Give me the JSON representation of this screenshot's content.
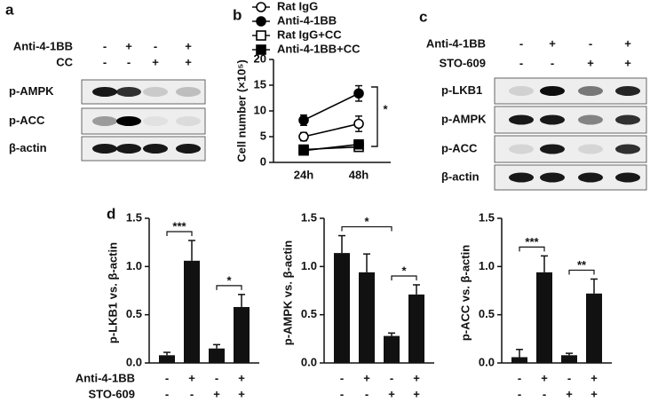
{
  "blot_a": {
    "label": "a",
    "conditions": [
      {
        "name": "Anti-4-1BB",
        "signs": [
          "-",
          "+",
          "-",
          "+"
        ]
      },
      {
        "name": "CC",
        "signs": [
          "-",
          "-",
          "+",
          "+"
        ]
      }
    ],
    "rows": [
      "p-AMPK",
      "p-ACC",
      "β-actin"
    ]
  },
  "blot_c": {
    "label": "c",
    "conditions": [
      {
        "name": "Anti-4-1BB",
        "signs": [
          "-",
          "+",
          "-",
          "+"
        ]
      },
      {
        "name": "STO-609",
        "signs": [
          "-",
          "-",
          "+",
          "+"
        ]
      }
    ],
    "rows": [
      "p-LKB1",
      "p-AMPK",
      "p-ACC",
      "β-actin"
    ]
  },
  "chart_data": [
    {
      "type": "line",
      "label": "b",
      "ylabel": "Cell number (×10⁵)",
      "categories": [
        "24h",
        "48h"
      ],
      "ylim": [
        0,
        20
      ],
      "yticks": [
        0,
        5,
        10,
        15,
        20
      ],
      "series": [
        {
          "name": "Rat IgG",
          "color": "#000000",
          "marker": "circle",
          "filled": false,
          "values": [
            5.0,
            7.5
          ],
          "errors": [
            0.8,
            1.5
          ]
        },
        {
          "name": "Anti-4-1BB",
          "color": "#000000",
          "marker": "circle",
          "filled": true,
          "values": [
            8.2,
            13.4
          ],
          "errors": [
            1.0,
            1.5
          ]
        },
        {
          "name": "Rat IgG+CC",
          "color": "#000000",
          "marker": "square",
          "filled": false,
          "values": [
            2.5,
            3.0
          ]
        },
        {
          "name": "Anti-4-1BB+CC",
          "color": "#000000",
          "marker": "square",
          "filled": true,
          "values": [
            2.3,
            3.5
          ]
        }
      ],
      "annotations": [
        {
          "text": "*"
        }
      ]
    },
    {
      "type": "bar",
      "label": "d",
      "ylabel": "p-LKB1 vs. β-actin",
      "color": "#111111",
      "ylim": [
        0,
        1.5
      ],
      "yticks": [
        {
          "value": 0,
          "label": "0.0"
        },
        0.5,
        {
          "value": 1,
          "label": "1.0"
        },
        1.5
      ],
      "values": [
        0.08,
        1.06,
        0.15,
        0.58
      ],
      "errors": [
        0.03,
        0.21,
        0.04,
        0.13
      ],
      "sign_names": [
        "Anti-4-1BB",
        "STO-609"
      ],
      "signs": [
        [
          "-",
          "+",
          "-",
          "+"
        ],
        [
          "-",
          "-",
          "+",
          "+"
        ]
      ],
      "annotations": [
        {
          "text": "***",
          "bars": [
            0,
            1
          ]
        },
        {
          "text": "*",
          "bars": [
            2,
            3
          ]
        }
      ]
    },
    {
      "type": "bar",
      "ylabel": "p-AMPK vs. β-actin",
      "color": "#111111",
      "ylim": [
        0,
        1.5
      ],
      "yticks": [
        {
          "value": 0,
          "label": "0.0"
        },
        0.5,
        {
          "value": 1,
          "label": "1.0"
        },
        1.5
      ],
      "values": [
        1.14,
        0.94,
        0.28,
        0.71
      ],
      "errors": [
        0.18,
        0.19,
        0.03,
        0.1
      ],
      "signs": [
        [
          "-",
          "+",
          "-",
          "+"
        ],
        [
          "-",
          "-",
          "+",
          "+"
        ]
      ],
      "annotations": [
        {
          "text": "*",
          "bars": [
            0,
            2
          ]
        },
        {
          "text": "*",
          "bars": [
            2,
            3
          ]
        }
      ]
    },
    {
      "type": "bar",
      "ylabel": "p-ACC vs. β-actin",
      "color": "#111111",
      "ylim": [
        0,
        1.5
      ],
      "yticks": [
        {
          "value": 0,
          "label": "0.0"
        },
        0.5,
        {
          "value": 1,
          "label": "1.0"
        },
        1.5
      ],
      "values": [
        0.06,
        0.94,
        0.08,
        0.72
      ],
      "errors": [
        0.08,
        0.17,
        0.02,
        0.15
      ],
      "signs": [
        [
          "-",
          "+",
          "-",
          "+"
        ],
        [
          "-",
          "-",
          "+",
          "+"
        ]
      ],
      "annotations": [
        {
          "text": "***",
          "bars": [
            0,
            1
          ]
        },
        {
          "text": "**",
          "bars": [
            2,
            3
          ]
        }
      ]
    }
  ]
}
